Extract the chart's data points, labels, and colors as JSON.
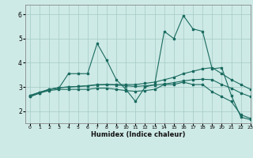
{
  "xlabel": "Humidex (Indice chaleur)",
  "bg_color": "#ceeae6",
  "grid_color": "#aacfcb",
  "line_color": "#1a6b60",
  "xlim": [
    -0.5,
    23
  ],
  "ylim": [
    1.5,
    6.4
  ],
  "yticks": [
    2,
    3,
    4,
    5,
    6
  ],
  "xticks": [
    0,
    1,
    2,
    3,
    4,
    5,
    6,
    7,
    8,
    9,
    10,
    11,
    12,
    13,
    14,
    15,
    16,
    17,
    18,
    19,
    20,
    21,
    22,
    23
  ],
  "series": [
    {
      "x": [
        0,
        1,
        2,
        3,
        4,
        5,
        6,
        7,
        8,
        9,
        10,
        11,
        12,
        13,
        14,
        15,
        16,
        17,
        18,
        19,
        20,
        21,
        22,
        23
      ],
      "y": [
        2.6,
        2.75,
        2.9,
        2.95,
        3.55,
        3.55,
        3.55,
        4.8,
        4.1,
        3.3,
        2.9,
        2.4,
        3.0,
        3.1,
        5.3,
        5.0,
        5.95,
        5.4,
        5.3,
        3.75,
        3.8,
        2.65,
        1.75,
        1.65
      ]
    },
    {
      "x": [
        0,
        1,
        2,
        3,
        4,
        5,
        6,
        7,
        8,
        9,
        10,
        11,
        12,
        13,
        14,
        15,
        16,
        17,
        18,
        19,
        20,
        21,
        22,
        23
      ],
      "y": [
        2.6,
        2.75,
        2.85,
        2.9,
        2.9,
        2.9,
        2.9,
        2.95,
        2.95,
        2.9,
        2.85,
        2.82,
        2.85,
        2.9,
        3.1,
        3.1,
        3.2,
        3.1,
        3.1,
        2.8,
        2.6,
        2.4,
        1.85,
        1.7
      ]
    },
    {
      "x": [
        0,
        1,
        2,
        3,
        4,
        5,
        6,
        7,
        8,
        9,
        10,
        11,
        12,
        13,
        14,
        15,
        16,
        17,
        18,
        19,
        20,
        21,
        22,
        23
      ],
      "y": [
        2.65,
        2.78,
        2.9,
        2.97,
        3.0,
        3.02,
        3.05,
        3.1,
        3.1,
        3.1,
        3.1,
        3.1,
        3.15,
        3.2,
        3.3,
        3.4,
        3.55,
        3.65,
        3.75,
        3.8,
        3.55,
        3.3,
        3.1,
        2.9
      ]
    },
    {
      "x": [
        0,
        1,
        2,
        3,
        4,
        5,
        6,
        7,
        8,
        9,
        10,
        11,
        12,
        13,
        14,
        15,
        16,
        17,
        18,
        19,
        20,
        21,
        22,
        23
      ],
      "y": [
        2.65,
        2.78,
        2.9,
        2.97,
        3.0,
        3.02,
        3.05,
        3.08,
        3.1,
        3.08,
        3.05,
        3.02,
        3.05,
        3.08,
        3.12,
        3.18,
        3.25,
        3.3,
        3.32,
        3.3,
        3.1,
        2.95,
        2.75,
        2.6
      ]
    }
  ]
}
